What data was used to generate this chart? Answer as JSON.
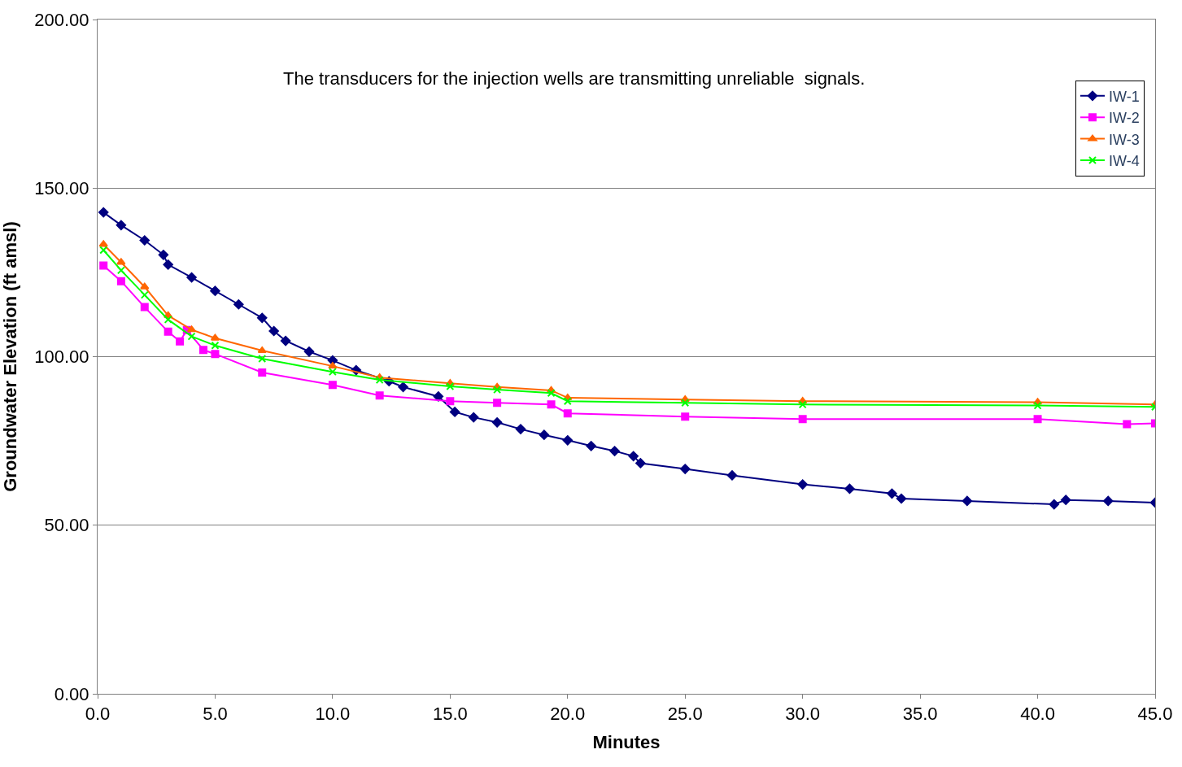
{
  "chart_data": {
    "type": "line",
    "xlabel": "Minutes",
    "ylabel": "Groundwater Elevation (ft amsl)",
    "annotations": [
      "The transducers for the injection wells are transmitting unreliable  signals."
    ],
    "xlim": [
      0,
      45
    ],
    "ylim": [
      0,
      200
    ],
    "xticks": [
      {
        "value": 0,
        "label": "0.0"
      },
      {
        "value": 5,
        "label": "5.0"
      },
      {
        "value": 10,
        "label": "10.0"
      },
      {
        "value": 15,
        "label": "15.0"
      },
      {
        "value": 20,
        "label": "20.0"
      },
      {
        "value": 25,
        "label": "25.0"
      },
      {
        "value": 30,
        "label": "30.0"
      },
      {
        "value": 35,
        "label": "35.0"
      },
      {
        "value": 40,
        "label": "40.0"
      },
      {
        "value": 45,
        "label": "45.0"
      }
    ],
    "yticks": [
      {
        "value": 0,
        "label": "0.00"
      },
      {
        "value": 50,
        "label": "50.00"
      },
      {
        "value": 100,
        "label": "100.00"
      },
      {
        "value": 150,
        "label": "150.00"
      },
      {
        "value": 200,
        "label": "200.00"
      }
    ],
    "grid": "y",
    "legend": "top right",
    "line_style": "solid",
    "series": [
      {
        "name": "IW-1",
        "color": "#000080",
        "marker": "diamond",
        "x": [
          0.25,
          1,
          2,
          2.8,
          3,
          4,
          5,
          6,
          7,
          7.5,
          8,
          9,
          10,
          11,
          12.4,
          13,
          14.5,
          15.2,
          16,
          17,
          18,
          19,
          20,
          21,
          22,
          22.8,
          23.1,
          25,
          27,
          30,
          32,
          33.8,
          34.2,
          37,
          40.7,
          41.2,
          43,
          45
        ],
        "values": [
          142.8,
          139,
          134.5,
          130.2,
          127.3,
          123.5,
          119.5,
          115.5,
          111.5,
          107.6,
          104.7,
          101.5,
          98.9,
          96,
          92.7,
          91,
          88.2,
          83.6,
          82,
          80.5,
          78.5,
          76.8,
          75.2,
          73.5,
          72,
          70.5,
          68.4,
          66.7,
          64.8,
          62.1,
          60.8,
          59.4,
          57.9,
          57.2,
          56.2,
          57.5,
          57.2,
          56.7
        ]
      },
      {
        "name": "IW-2",
        "color": "#ff00ff",
        "marker": "square",
        "x": [
          0.25,
          1,
          2,
          3,
          3.5,
          3.8,
          4.5,
          5,
          7,
          10,
          12,
          15,
          17,
          19.3,
          20,
          25,
          30,
          40,
          43.8,
          45
        ],
        "values": [
          127,
          122.4,
          114.7,
          107.4,
          104.5,
          107.9,
          102,
          100.8,
          95.3,
          91.6,
          88.5,
          86.8,
          86.3,
          85.8,
          83.2,
          82.2,
          81.5,
          81.5,
          80,
          80.2
        ]
      },
      {
        "name": "IW-3",
        "color": "#ff6600",
        "marker": "triangle",
        "x": [
          0.25,
          1,
          2,
          3,
          4,
          5,
          7,
          10,
          12,
          15,
          17,
          19.3,
          20,
          25,
          30,
          40,
          45
        ],
        "values": [
          133.3,
          128,
          120.7,
          112.2,
          108,
          105.5,
          101.8,
          97.2,
          93.8,
          92.1,
          91,
          90,
          87.8,
          87.3,
          86.8,
          86.5,
          85.8
        ]
      },
      {
        "name": "IW-4",
        "color": "#00ff00",
        "marker": "cross",
        "x": [
          0.25,
          1,
          2,
          3,
          4,
          5,
          7,
          10,
          12,
          15,
          17,
          19.3,
          20,
          25,
          30,
          40,
          45
        ],
        "values": [
          131.6,
          125.6,
          118.3,
          111,
          106,
          103.3,
          99.4,
          95.5,
          93.1,
          91.2,
          90.2,
          89.2,
          86.8,
          86.3,
          85.8,
          85.5,
          85.1
        ]
      }
    ]
  }
}
